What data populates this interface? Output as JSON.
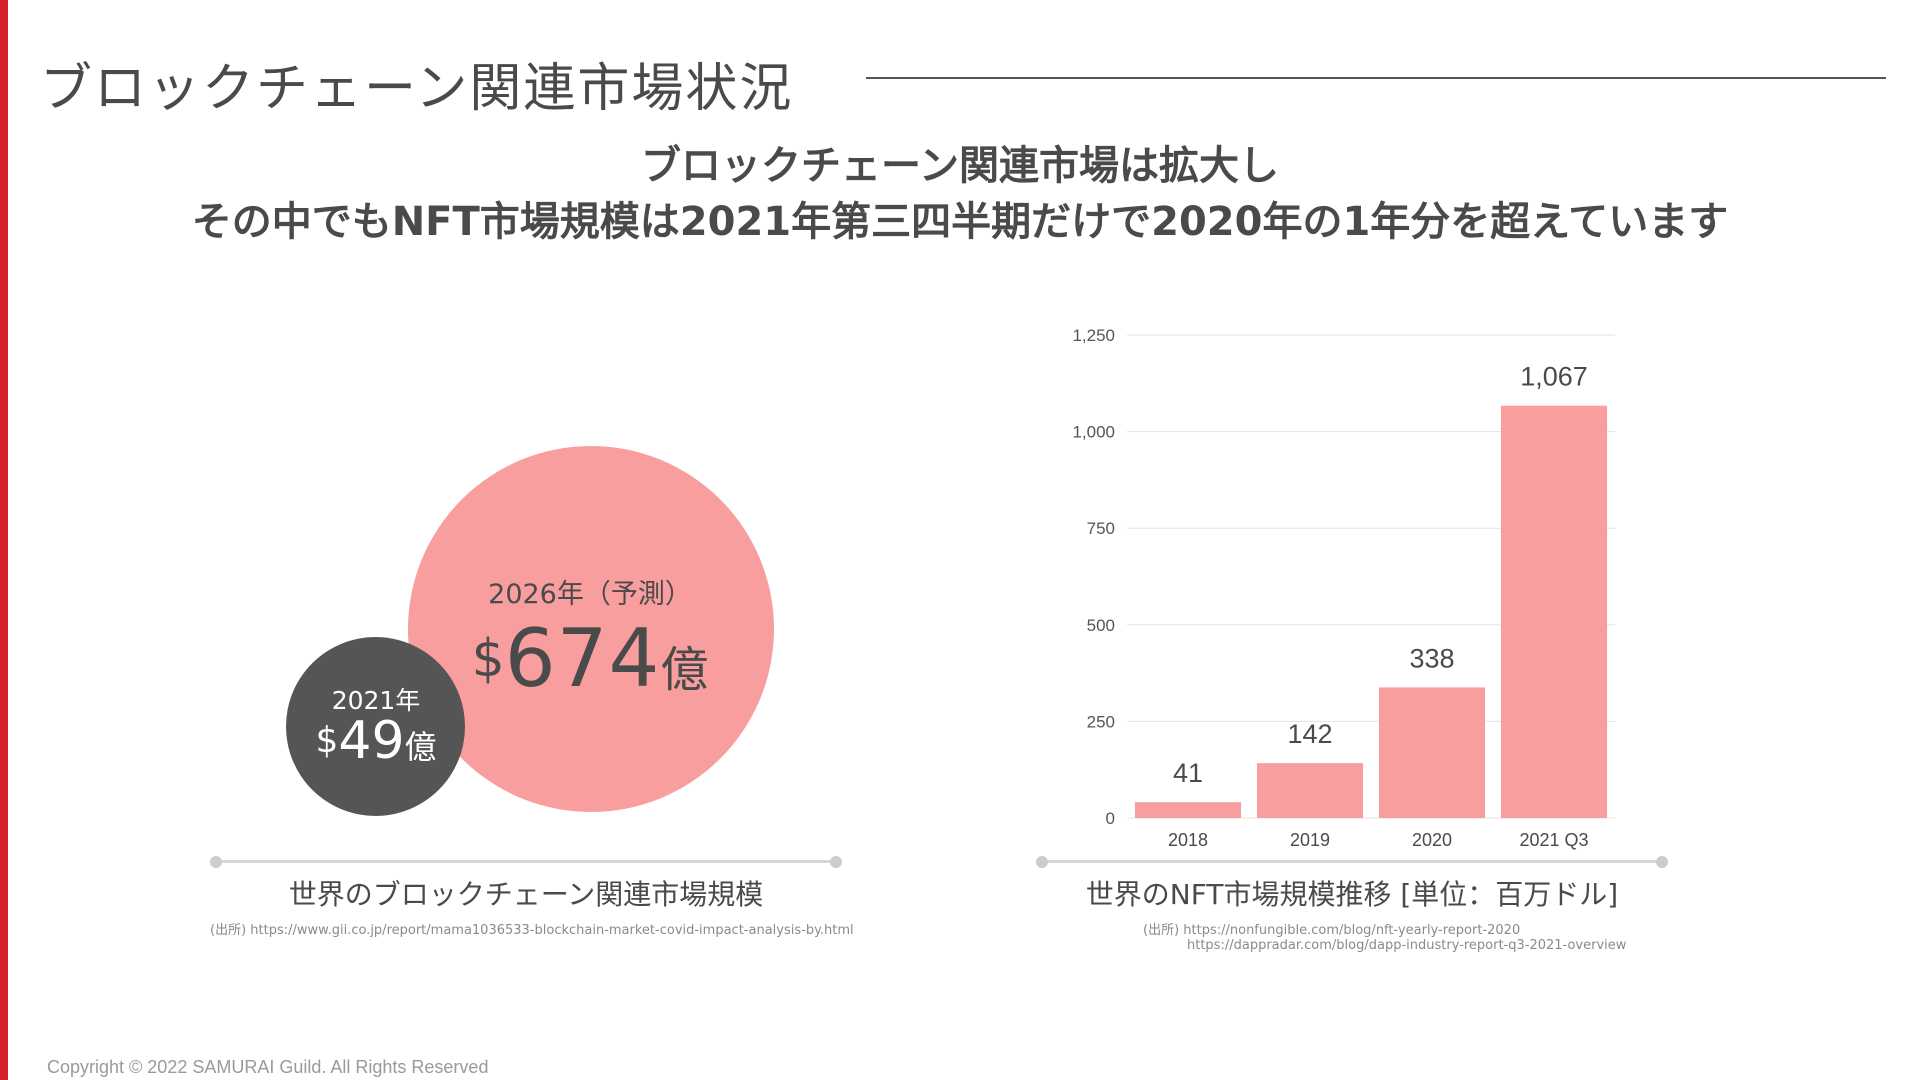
{
  "title": "ブロックチェーン関連市場状況",
  "headline": {
    "line1": "ブロックチェーン関連市場は拡大し",
    "line2": "その中でもNFT市場規模は2021年第三四半期だけで2020年の1年分を超えています"
  },
  "market_size": {
    "forecast": {
      "year_label": "2026年（予測）",
      "currency": "$",
      "value": "674",
      "unit": "億"
    },
    "current": {
      "year_label": "2021年",
      "currency": "$",
      "value": "49",
      "unit": "億"
    },
    "caption": "世界のブロックチェーン関連市場規模",
    "source": "(出所) https://www.gii.co.jp/report/mama1036533-blockchain-market-covid-impact-analysis-by.html"
  },
  "nft_chart": {
    "caption": "世界のNFT市場規模推移 [単位：百万ドル]",
    "source_line1": "(出所) https://nonfungible.com/blog/nft-yearly-report-2020",
    "source_line2": "https://dappradar.com/blog/dapp-industry-report-q3-2021-overview"
  },
  "chart_data": {
    "type": "bar",
    "title": "世界のNFT市場規模推移 [単位：百万ドル]",
    "categories": [
      "2018",
      "2019",
      "2020",
      "2021 Q3"
    ],
    "values": [
      41,
      142,
      338,
      1067
    ],
    "value_labels": [
      "41",
      "142",
      "338",
      "1,067"
    ],
    "yticks": [
      0,
      250,
      500,
      750,
      1000,
      1250
    ],
    "ytick_labels": [
      "0",
      "250",
      "500",
      "750",
      "1,000",
      "1,250"
    ],
    "ylim": [
      0,
      1250
    ],
    "xlabel": "",
    "ylabel": "",
    "grid": true,
    "bar_color": "#f99e9e"
  },
  "colors": {
    "accent": "#d9212c",
    "bubble_pink": "#f99e9e",
    "bubble_dark": "#555555"
  },
  "copyright": "Copyright © 2022 SAMURAI Guild. All Rights Reserved"
}
